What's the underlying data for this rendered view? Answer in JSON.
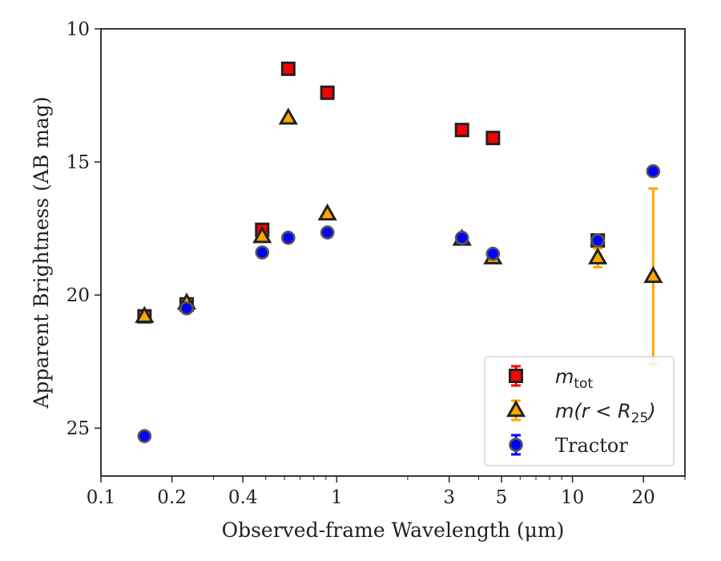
{
  "chart_data": {
    "type": "scatter",
    "xlabel": "Observed-frame Wavelength (μm)",
    "ylabel": "Apparent Brightness (AB mag)",
    "x_scale": "log",
    "xlim": [
      0.1,
      30
    ],
    "ylim": [
      26.8,
      10
    ],
    "y_inverted": true,
    "x_ticks": [
      0.1,
      0.2,
      0.4,
      1,
      3,
      5,
      10,
      20
    ],
    "x_tick_labels": [
      "0.1",
      "0.2",
      "0.4",
      "1",
      "3",
      "5",
      "10",
      "20"
    ],
    "y_ticks": [
      10,
      15,
      20,
      25
    ],
    "y_tick_labels": [
      "10",
      "15",
      "20",
      "25"
    ],
    "grid": false,
    "legend_position": "bottom-right",
    "series": [
      {
        "name": "m_tot",
        "legend_main": "m",
        "legend_sub": "tot",
        "marker": "square",
        "color": "#ff0000",
        "edge": "#222222",
        "x": [
          0.153,
          0.231,
          0.483,
          0.623,
          0.913,
          3.4,
          4.6,
          12.8
        ],
        "y": [
          20.8,
          20.35,
          17.55,
          11.5,
          12.4,
          13.8,
          14.1,
          17.95
        ],
        "yerr": [
          0.1,
          0.1,
          0.05,
          0.03,
          0.03,
          0.03,
          0.03,
          0.15
        ]
      },
      {
        "name": "m(r < R25)",
        "legend_main": "m(r < R",
        "legend_sub": "25",
        "legend_tail": ")",
        "marker": "triangle",
        "color": "#ffa500",
        "edge": "#222222",
        "x": [
          0.153,
          0.231,
          0.483,
          0.623,
          0.913,
          3.4,
          4.6,
          12.8,
          22
        ],
        "y": [
          20.8,
          20.3,
          17.8,
          13.35,
          16.95,
          17.9,
          18.6,
          18.6,
          19.3
        ],
        "yerr": [
          0.1,
          0.1,
          0.05,
          0.03,
          0.03,
          0.03,
          0.05,
          0.35,
          3.3
        ]
      },
      {
        "name": "Tractor",
        "marker": "circle",
        "color": "#0000ff",
        "edge": "#555555",
        "x": [
          0.153,
          0.231,
          0.483,
          0.623,
          0.913,
          3.4,
          4.6,
          12.8,
          22
        ],
        "y": [
          25.3,
          20.5,
          18.4,
          17.85,
          17.65,
          17.85,
          18.45,
          17.95,
          15.35
        ],
        "yerr": [
          0.05,
          0.05,
          0.03,
          0.03,
          0.03,
          0.03,
          0.03,
          0.05,
          0.05
        ]
      }
    ]
  }
}
